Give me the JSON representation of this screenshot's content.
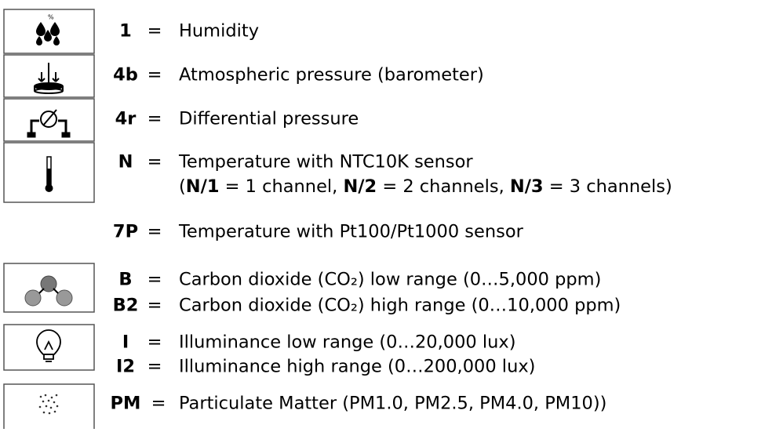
{
  "entries": [
    {
      "code": "1",
      "sep": "=",
      "text": "Humidity"
    },
    {
      "code": "4b",
      "sep": "=",
      "text": "Atmospheric pressure (barometer)"
    },
    {
      "code": "4r",
      "sep": "=",
      "text": "Differential pressure"
    },
    {
      "code": "N",
      "sep": "=",
      "text": "Temperature with NTC10K sensor",
      "note": {
        "open": "(",
        "parts": [
          {
            "code": "N/1",
            "text": " = 1 channel, "
          },
          {
            "code": "N/2",
            "text": " = 2 channels, "
          },
          {
            "code": "N/3",
            "text": " = 3 channels"
          }
        ],
        "close": ")"
      }
    },
    {
      "code": "7P",
      "sep": "=",
      "text": "Temperature with Pt100/Pt1000 sensor"
    },
    {
      "code": "B",
      "sep": "=",
      "text": "Carbon dioxide (CO₂) low range (0…5,000 ppm)"
    },
    {
      "code": "B2",
      "sep": "=",
      "text": "Carbon dioxide (CO₂) high range (0…10,000 ppm)"
    },
    {
      "code": "I",
      "sep": "=",
      "text": "Illuminance low range (0…20,000 lux)"
    },
    {
      "code": "I2",
      "sep": "=",
      "text": "Illuminance high range (0…200,000 lux)"
    },
    {
      "code": "PM",
      "sep": "=",
      "text": "Particulate Matter (PM1.0, PM2.5, PM4.0, PM10))"
    }
  ]
}
